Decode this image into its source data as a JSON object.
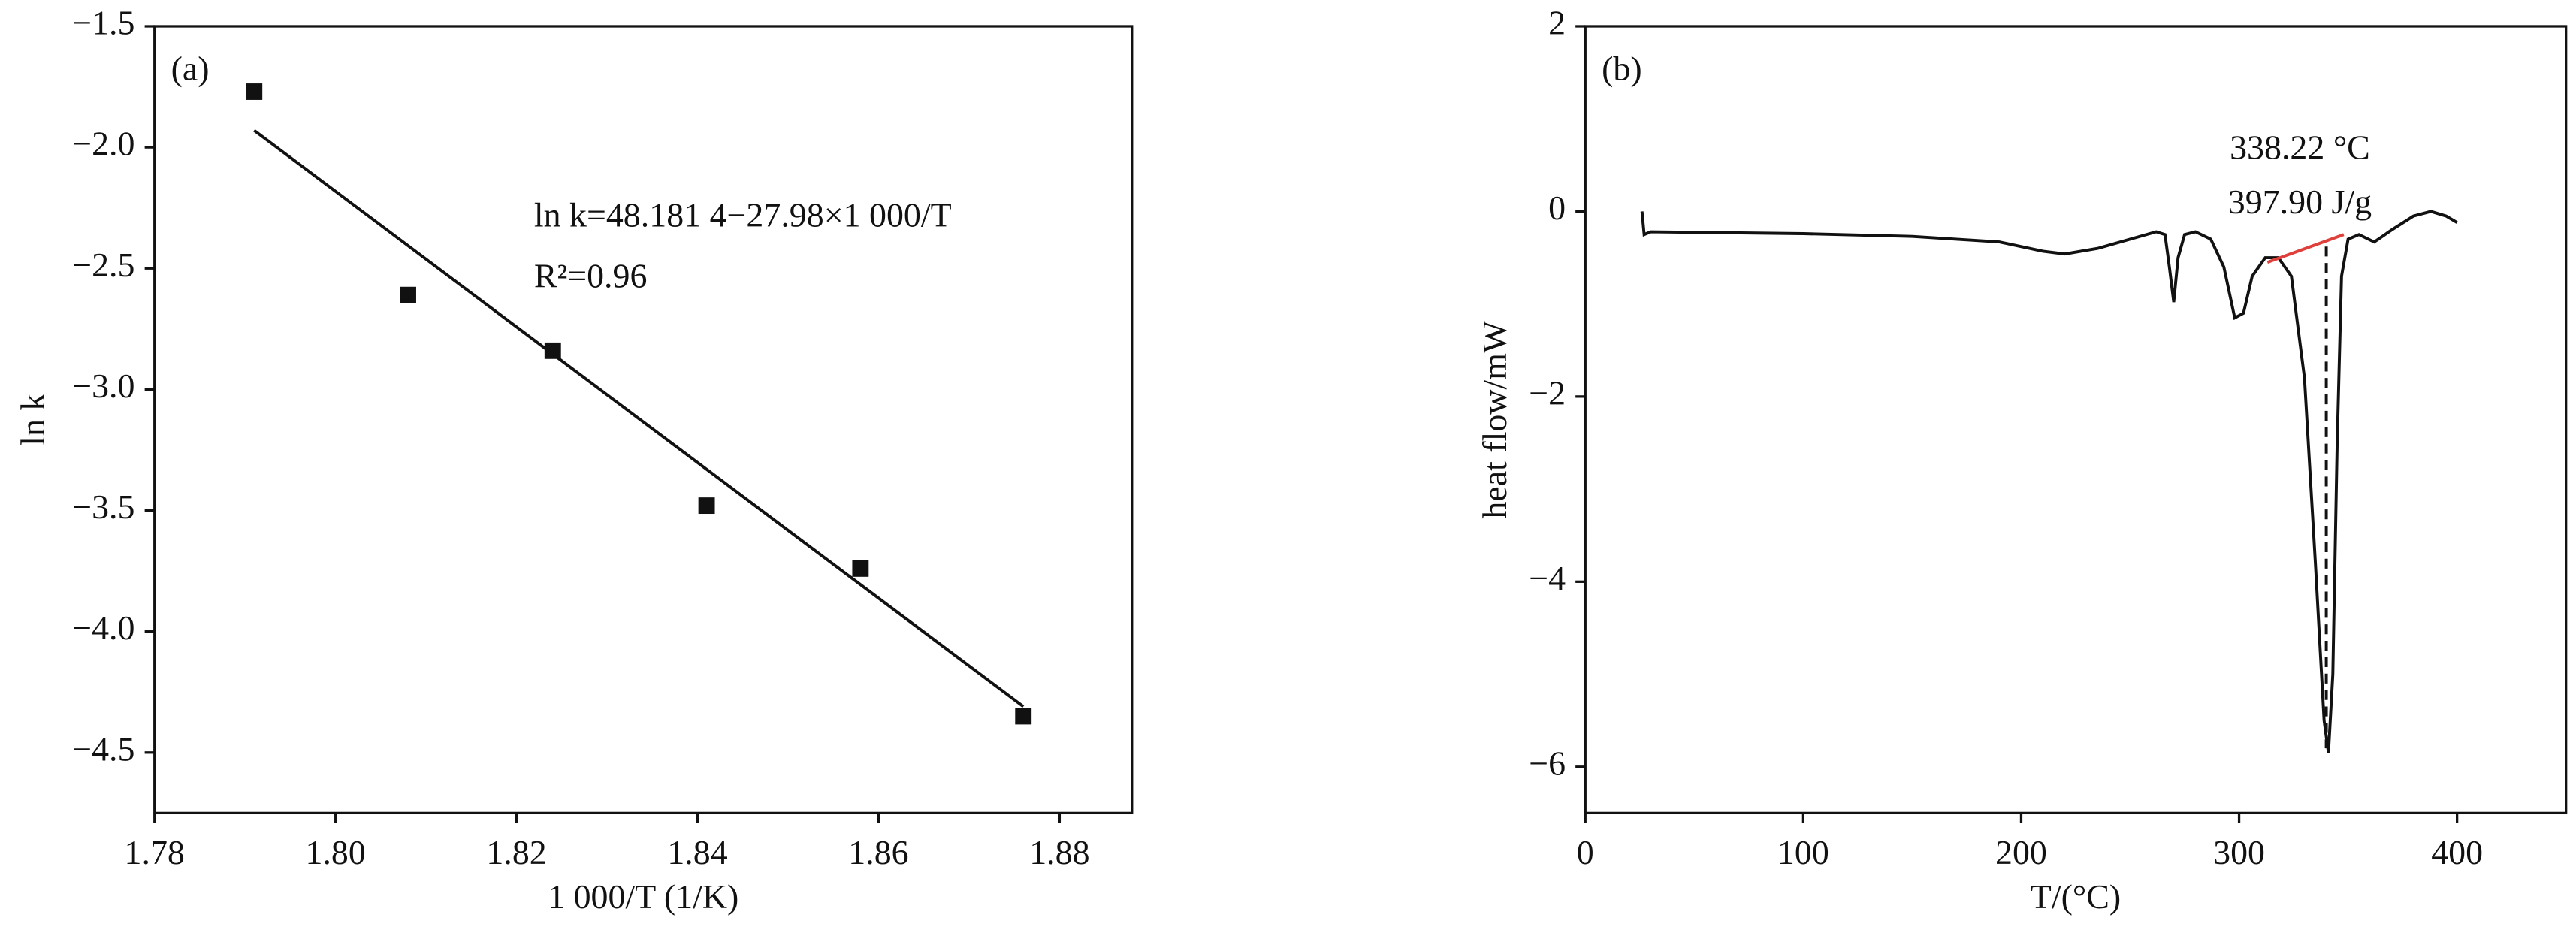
{
  "chart_data": [
    {
      "type": "scatter",
      "panel_label": "(a)",
      "x_label": "1 000/T (1/K)",
      "y_label": "ln k",
      "annotations": [
        "ln k=48.181 4−27.98×1 000/T",
        "R²=0.96"
      ],
      "x": [
        1.791,
        1.808,
        1.824,
        1.841,
        1.858,
        1.876
      ],
      "values": [
        -1.77,
        -2.61,
        -2.84,
        -3.48,
        -3.74,
        -4.35
      ],
      "color": "#111111",
      "fit": {
        "x": [
          1.791,
          1.876
        ],
        "values": [
          -1.93,
          -4.31
        ],
        "color": "#111111"
      },
      "xlim": [
        1.78,
        1.888
      ],
      "ylim": [
        -4.75,
        -1.5
      ],
      "xticks": [
        {
          "value": 1.78,
          "label": "1.78"
        },
        {
          "value": 1.8,
          "label": "1.80"
        },
        {
          "value": 1.82,
          "label": "1.82"
        },
        {
          "value": 1.84,
          "label": "1.84"
        },
        {
          "value": 1.86,
          "label": "1.86"
        },
        {
          "value": 1.88,
          "label": "1.88"
        }
      ],
      "yticks": [
        {
          "value": -1.5,
          "label": "−1.5"
        },
        {
          "value": -2,
          "label": "−2.0"
        },
        {
          "value": -2.5,
          "label": "−2.5"
        },
        {
          "value": -3,
          "label": "−3.0"
        },
        {
          "value": -3.5,
          "label": "−3.5"
        },
        {
          "value": -4,
          "label": "−4.0"
        },
        {
          "value": -4.5,
          "label": "−4.5"
        }
      ]
    },
    {
      "type": "line",
      "panel_label": "(b)",
      "x_label": "T/(°C)",
      "y_label": "heat flow/mW",
      "annotations": [
        "338.22 °C",
        "397.90 J/g"
      ],
      "x": [
        26,
        27,
        30,
        100,
        150,
        190,
        210,
        220,
        235,
        250,
        262,
        266,
        268,
        270,
        272,
        275,
        280,
        287,
        293,
        298,
        302,
        306,
        312,
        318,
        324,
        330,
        335,
        339,
        341,
        343,
        345,
        347,
        350,
        355,
        362,
        370,
        380,
        388,
        395,
        400
      ],
      "values": [
        0.0,
        -0.25,
        -0.22,
        -0.24,
        -0.27,
        -0.33,
        -0.43,
        -0.46,
        -0.4,
        -0.3,
        -0.22,
        -0.25,
        -0.6,
        -0.98,
        -0.5,
        -0.25,
        -0.22,
        -0.3,
        -0.6,
        -1.15,
        -1.1,
        -0.7,
        -0.5,
        -0.5,
        -0.7,
        -1.8,
        -3.8,
        -5.5,
        -5.85,
        -5.0,
        -2.5,
        -0.7,
        -0.3,
        -0.25,
        -0.33,
        -0.2,
        -0.05,
        0.0,
        -0.05,
        -0.12
      ],
      "color": "#111111",
      "baseline": {
        "x": [
          313,
          348
        ],
        "values": [
          -0.55,
          -0.25
        ],
        "color": "#e0403c"
      },
      "peak_line": {
        "x": [
          340,
          340
        ],
        "values": [
          -0.38,
          -5.8
        ],
        "color": "#111111"
      },
      "xlim": [
        0,
        450
      ],
      "ylim": [
        -6.5,
        2
      ],
      "xticks": [
        0,
        100,
        200,
        300,
        400
      ],
      "yticks": [
        2,
        0,
        {
          "value": -2,
          "label": "−2"
        },
        {
          "value": -4,
          "label": "−4"
        },
        {
          "value": -6,
          "label": "−6"
        }
      ]
    }
  ]
}
